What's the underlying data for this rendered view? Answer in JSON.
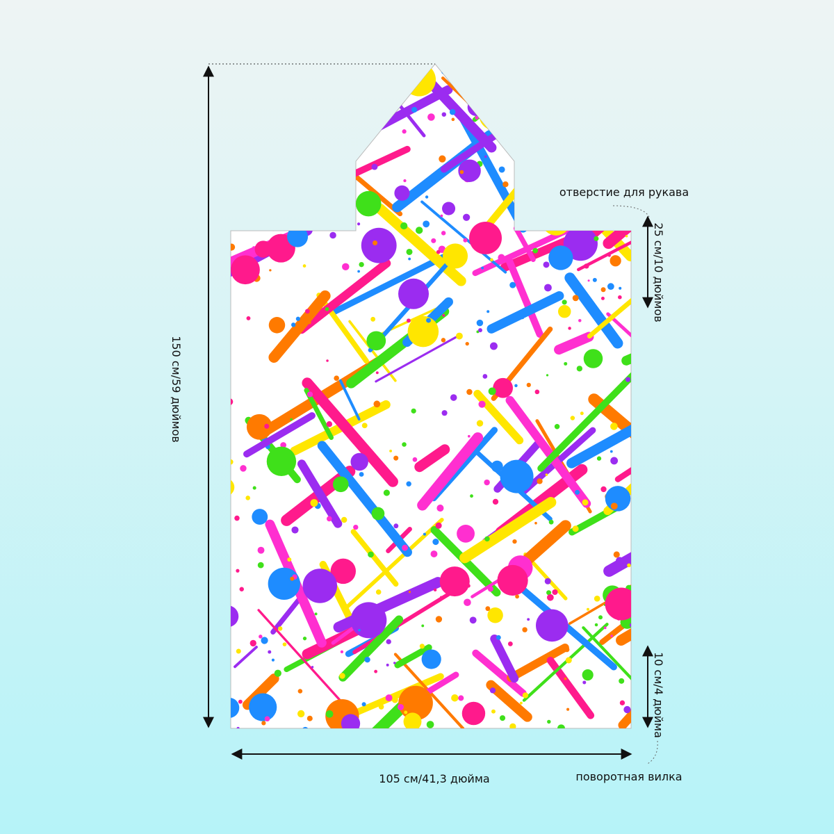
{
  "labels": {
    "sleeve_opening": "отверстие для рукава",
    "sleeve_size": "25 см/10 дюймов",
    "height": "150 см/59 дюймов",
    "width": "105 см/41,3 дюйма",
    "bottom_size": "10 см/4 дюйма",
    "swivel": "поворотная вилка"
  }
}
